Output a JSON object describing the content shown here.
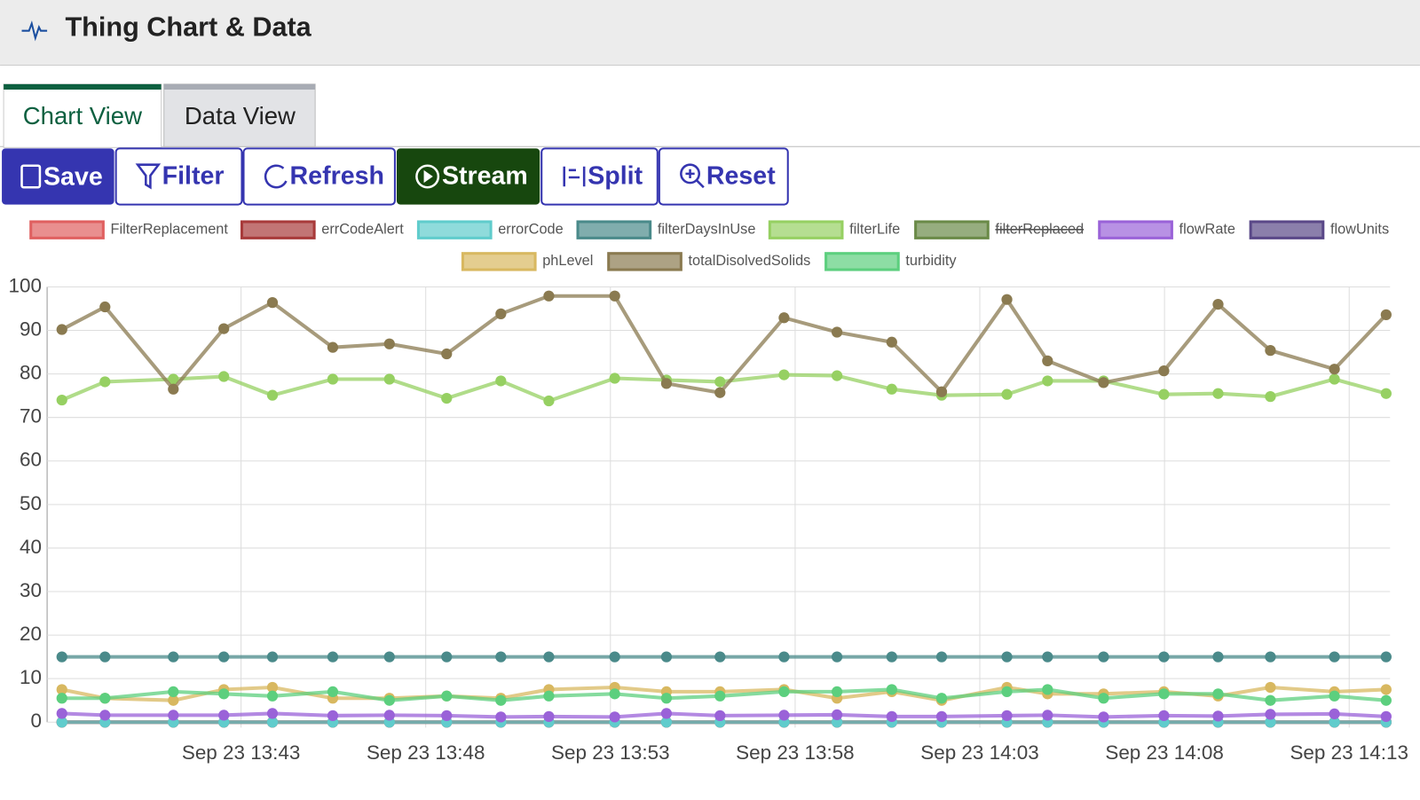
{
  "header": {
    "title": "Thing Chart & Data"
  },
  "tabs": [
    "Chart View",
    "Data View"
  ],
  "toolbar": [
    "Save",
    "Filter",
    "Refresh",
    "Stream",
    "Split",
    "Reset"
  ],
  "chart_data": {
    "type": "line",
    "x": [
      "13:38:09",
      "13:39:19",
      "13:41:10",
      "13:42:32",
      "13:43:51",
      "13:45:29",
      "13:47:01",
      "13:48:34",
      "13:50:02",
      "13:51:20",
      "13:53:07",
      "13:54:31",
      "13:55:58",
      "13:57:42",
      "13:59:08",
      "14:00:37",
      "14:01:58",
      "14:03:44",
      "14:04:50",
      "14:06:21",
      "14:07:59",
      "14:09:27",
      "14:10:52",
      "14:12:36",
      "14:14:00"
    ],
    "xlim": [
      "13:37:45",
      "14:14:02"
    ],
    "xticks": [
      {
        "value": "13:43:00",
        "label": "Sep 23 13:43"
      },
      {
        "value": "13:48:00",
        "label": "Sep 23 13:48"
      },
      {
        "value": "13:53:00",
        "label": "Sep 23 13:53"
      },
      {
        "value": "13:58:00",
        "label": "Sep 23 13:58"
      },
      {
        "value": "14:03:00",
        "label": "Sep 23 14:03"
      },
      {
        "value": "14:08:00",
        "label": "Sep 23 14:08"
      },
      {
        "value": "14:13:00",
        "label": "Sep 23 14:13"
      }
    ],
    "ylim": [
      0,
      100
    ],
    "yticks": [
      0,
      10,
      20,
      30,
      40,
      50,
      60,
      70,
      80,
      90,
      100
    ],
    "grid": true,
    "series": [
      {
        "name": "FilterReplacement",
        "color": "#e06060",
        "values": [
          0,
          0,
          0,
          0,
          0,
          0,
          0,
          0,
          0,
          0,
          0,
          0,
          0,
          0,
          0,
          0,
          0,
          0,
          0,
          0,
          0,
          0,
          0,
          0,
          0
        ]
      },
      {
        "name": "errCodeAlert",
        "color": "#a83a3a",
        "values": [
          0,
          0,
          0,
          0,
          0,
          0,
          0,
          0,
          0,
          0,
          0,
          0,
          0,
          0,
          0,
          0,
          0,
          0,
          0,
          0,
          0,
          0,
          0,
          0,
          0
        ]
      },
      {
        "name": "errorCode",
        "color": "#60cccc",
        "values": [
          0,
          0,
          0,
          0,
          0,
          0,
          0,
          0,
          0,
          0,
          0,
          0,
          0,
          0,
          0,
          0,
          0,
          0,
          0,
          0,
          0,
          0,
          0,
          0,
          0
        ]
      },
      {
        "name": "filterDaysInUse",
        "color": "#4a8a8a",
        "values": [
          15,
          15,
          15,
          15,
          15,
          15,
          15,
          15,
          15,
          15,
          15,
          15,
          15,
          15,
          15,
          15,
          15,
          15,
          15,
          15,
          15,
          15,
          15,
          15,
          15
        ]
      },
      {
        "name": "filterLife",
        "color": "#96d062",
        "values": [
          74.0,
          78.2,
          78.8,
          79.4,
          75.1,
          78.8,
          78.8,
          74.4,
          78.4,
          73.8,
          79.0,
          78.6,
          78.2,
          79.8,
          79.6,
          76.5,
          75.1,
          75.3,
          78.4,
          78.4,
          75.3,
          75.5,
          74.8,
          78.8,
          75.5
        ]
      },
      {
        "name": "filterReplaced",
        "color": "#6a8a48",
        "hidden": true,
        "values": [
          null,
          null,
          null,
          null,
          null,
          null,
          null,
          null,
          null,
          null,
          null,
          null,
          null,
          null,
          null,
          null,
          null,
          null,
          null,
          null,
          null,
          null,
          null,
          null,
          null
        ]
      },
      {
        "name": "flowRate",
        "color": "#9a62d8",
        "values": [
          2,
          1.6,
          1.6,
          1.6,
          2,
          1.5,
          1.6,
          1.5,
          1.2,
          1.3,
          1.2,
          2,
          1.5,
          1.6,
          1.7,
          1.3,
          1.3,
          1.5,
          1.6,
          1.2,
          1.5,
          1.4,
          1.8,
          1.9,
          1.3
        ]
      },
      {
        "name": "flowUnits",
        "color": "#5a4888",
        "values": [
          null,
          null,
          null,
          null,
          null,
          null,
          null,
          null,
          null,
          null,
          null,
          null,
          null,
          null,
          null,
          null,
          null,
          null,
          null,
          null,
          null,
          null,
          null,
          null,
          null
        ]
      },
      {
        "name": "phLevel",
        "color": "#d8b860",
        "values": [
          7.5,
          5.5,
          5.0,
          7.5,
          8,
          5.5,
          5.5,
          6,
          5.5,
          7.5,
          8,
          7,
          7,
          7.5,
          5.5,
          7,
          5,
          8,
          6.5,
          6.5,
          7,
          6,
          8,
          7,
          7.5
        ]
      },
      {
        "name": "totalDisolvedSolids",
        "color": "#8a7a50",
        "values": [
          90.2,
          95.4,
          76.5,
          90.4,
          96.4,
          86.1,
          86.9,
          84.6,
          93.8,
          97.9,
          97.9,
          77.8,
          75.7,
          92.9,
          89.6,
          87.3,
          75.9,
          97.1,
          83.0,
          78.0,
          80.7,
          96.0,
          85.4,
          81.1,
          93.6
        ]
      },
      {
        "name": "turbidity",
        "color": "#5ccf7e",
        "values": [
          5.5,
          5.5,
          7,
          6.5,
          6,
          7,
          5,
          6,
          5,
          6,
          6.5,
          5.5,
          6,
          7,
          7,
          7.5,
          5.5,
          7,
          7.5,
          5.5,
          6.5,
          6.5,
          5,
          6,
          5
        ]
      }
    ]
  }
}
